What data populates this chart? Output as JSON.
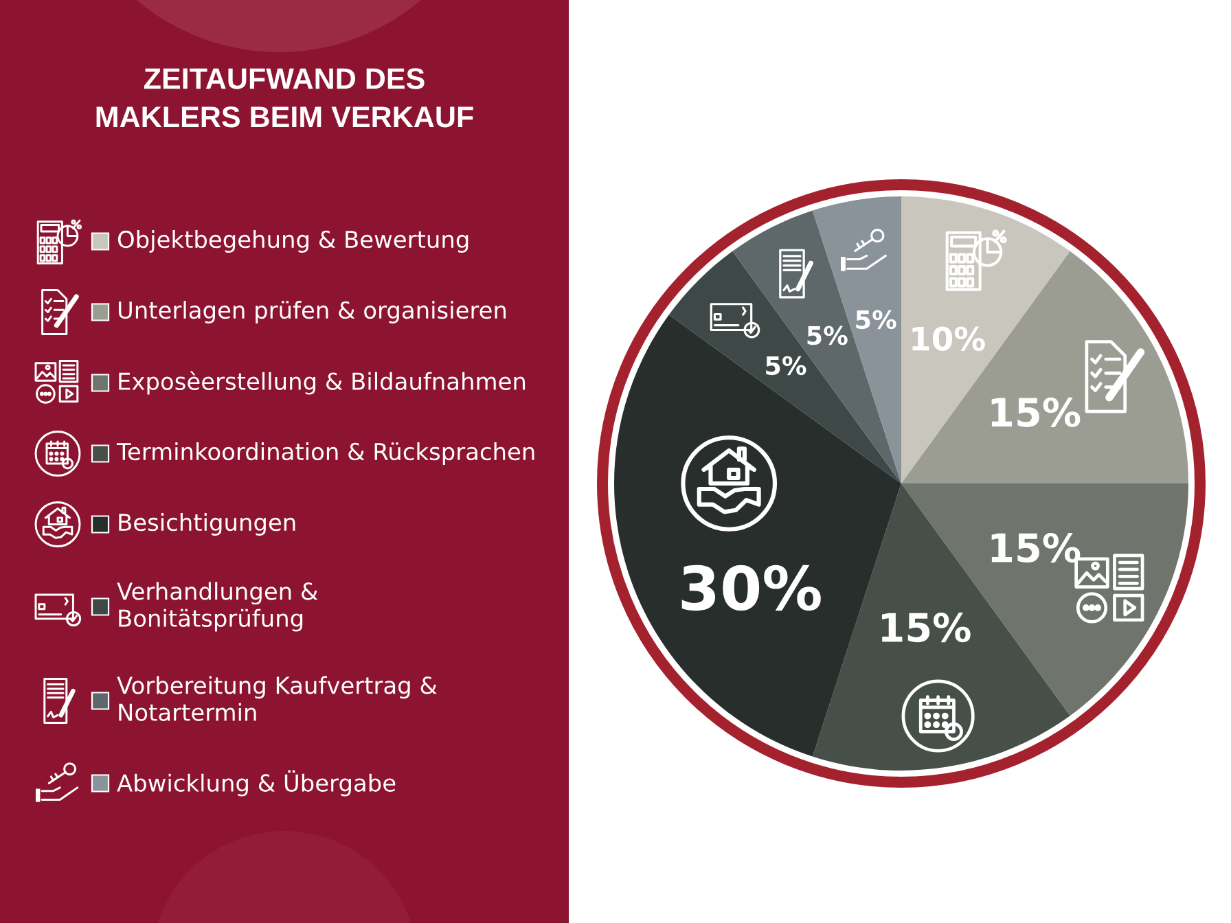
{
  "chart_data": {
    "type": "pie",
    "title": "ZEITAUFWAND DES\nMAKLERS BEIM VERKAUF",
    "categories": [
      "Objektbegehung & Bewertung",
      "Unterlagen prüfen & organisieren",
      "Exposèerstellung & Bildaufnahmen",
      "Terminkoordination & Rücksprachen",
      "Besichtigungen",
      "Verhandlungen &\nBonitätsprüfung",
      "Vorbereitung Kaufvertrag &\nNotartermin",
      "Abwicklung & Übergabe"
    ],
    "values": [
      10,
      15,
      15,
      15,
      30,
      5,
      5,
      5
    ],
    "colors": [
      "#c9c6bd",
      "#9b9d92",
      "#6f756d",
      "#465049",
      "#272e2c",
      "#3e4846",
      "#5e676a",
      "#8a929a"
    ],
    "value_labels": [
      "10%",
      "15%",
      "15%",
      "15%",
      "30%",
      "5%",
      "5%",
      "5%"
    ],
    "legend": "left"
  }
}
